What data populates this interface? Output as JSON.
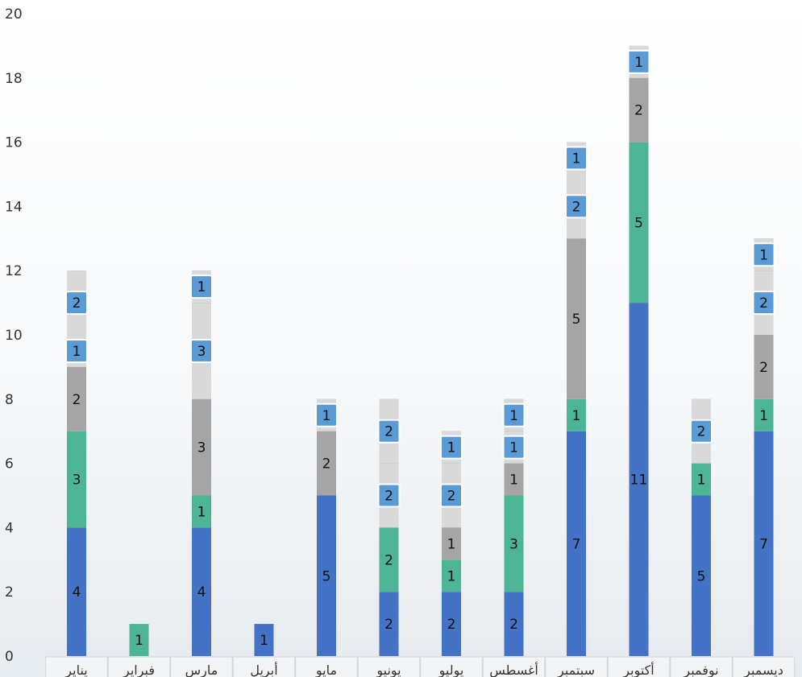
{
  "chart_data": {
    "type": "bar",
    "stacked": true,
    "title": "",
    "xlabel": "",
    "ylabel": "",
    "ylim": [
      0,
      20
    ],
    "yticks": [
      0,
      2,
      4,
      6,
      8,
      10,
      12,
      14,
      16,
      18,
      20
    ],
    "grid": false,
    "legend": "none",
    "categories": [
      "يناير",
      "فبراير",
      "مارس",
      "أبريل",
      "مايو",
      "يونيو",
      "يوليو",
      "أغسطس",
      "سبتمبر",
      "أكتوبر",
      "نوفمبر",
      "ديسمبر"
    ],
    "series": [
      {
        "color": "#4472c4",
        "values": [
          4,
          0,
          4,
          1,
          5,
          2,
          2,
          2,
          7,
          11,
          5,
          7
        ]
      },
      {
        "color": "#4db596",
        "values": [
          3,
          1,
          1,
          0,
          0,
          2,
          1,
          3,
          1,
          5,
          1,
          1
        ]
      },
      {
        "color": "#a5a5a5",
        "values": [
          2,
          0,
          3,
          0,
          2,
          0,
          1,
          1,
          5,
          2,
          0,
          2
        ]
      },
      {
        "color": "#5b9bd5",
        "values": [
          1,
          0,
          3,
          0,
          1,
          2,
          2,
          1,
          2,
          1,
          2,
          2
        ]
      },
      {
        "color": "#5b9bd5",
        "values": [
          2,
          0,
          1,
          0,
          0,
          2,
          1,
          1,
          1,
          0,
          0,
          1
        ]
      }
    ]
  }
}
